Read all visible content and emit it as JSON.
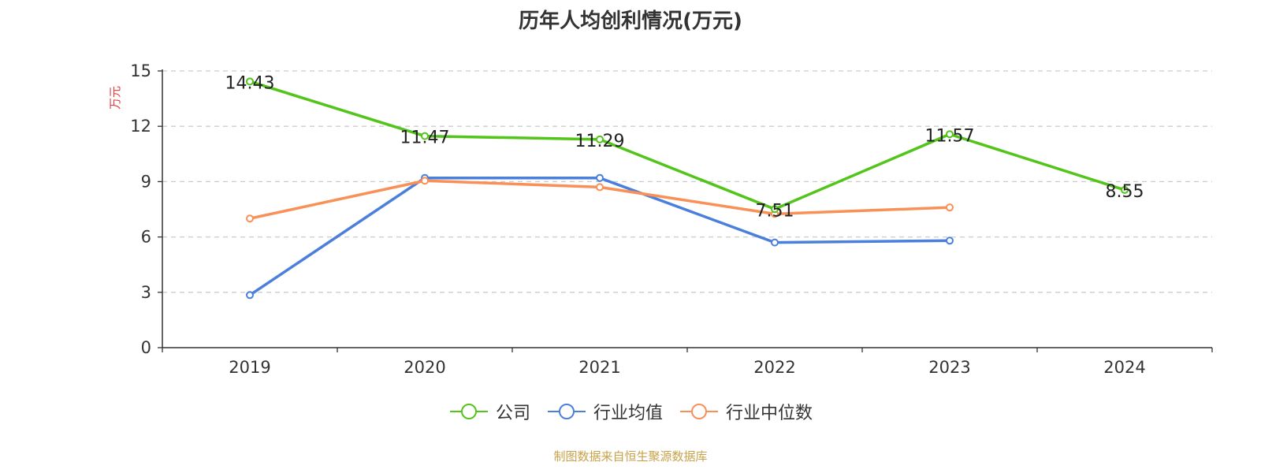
{
  "chart_data": {
    "type": "line",
    "title": "历年人均创利情况(万元)",
    "ylabel": "万元",
    "xlabel": "",
    "categories": [
      "2019",
      "2020",
      "2021",
      "2022",
      "2023",
      "2024"
    ],
    "ylim": [
      0,
      15
    ],
    "yticks": [
      0,
      3,
      6,
      9,
      12,
      15
    ],
    "grid": true,
    "legend_position": "bottom",
    "series": [
      {
        "name": "公司",
        "color": "#52c41a",
        "values": [
          14.43,
          11.47,
          11.29,
          7.51,
          11.57,
          8.55
        ],
        "data_labels": [
          "14.43",
          "11.47",
          "11.29",
          "7.51",
          "11.57",
          "8.55"
        ]
      },
      {
        "name": "行业均值",
        "color": "#4a7fdc",
        "values": [
          2.85,
          9.2,
          9.2,
          5.7,
          5.8,
          null
        ]
      },
      {
        "name": "行业中位数",
        "color": "#f89057",
        "values": [
          7.0,
          9.05,
          8.7,
          7.25,
          7.6,
          null
        ]
      }
    ]
  },
  "source_note": "制图数据来自恒生聚源数据库",
  "colors": {
    "axis": "#333333",
    "grid": "#cccccc",
    "ylabel": "#e03c3c",
    "source": "#c8a24a"
  }
}
